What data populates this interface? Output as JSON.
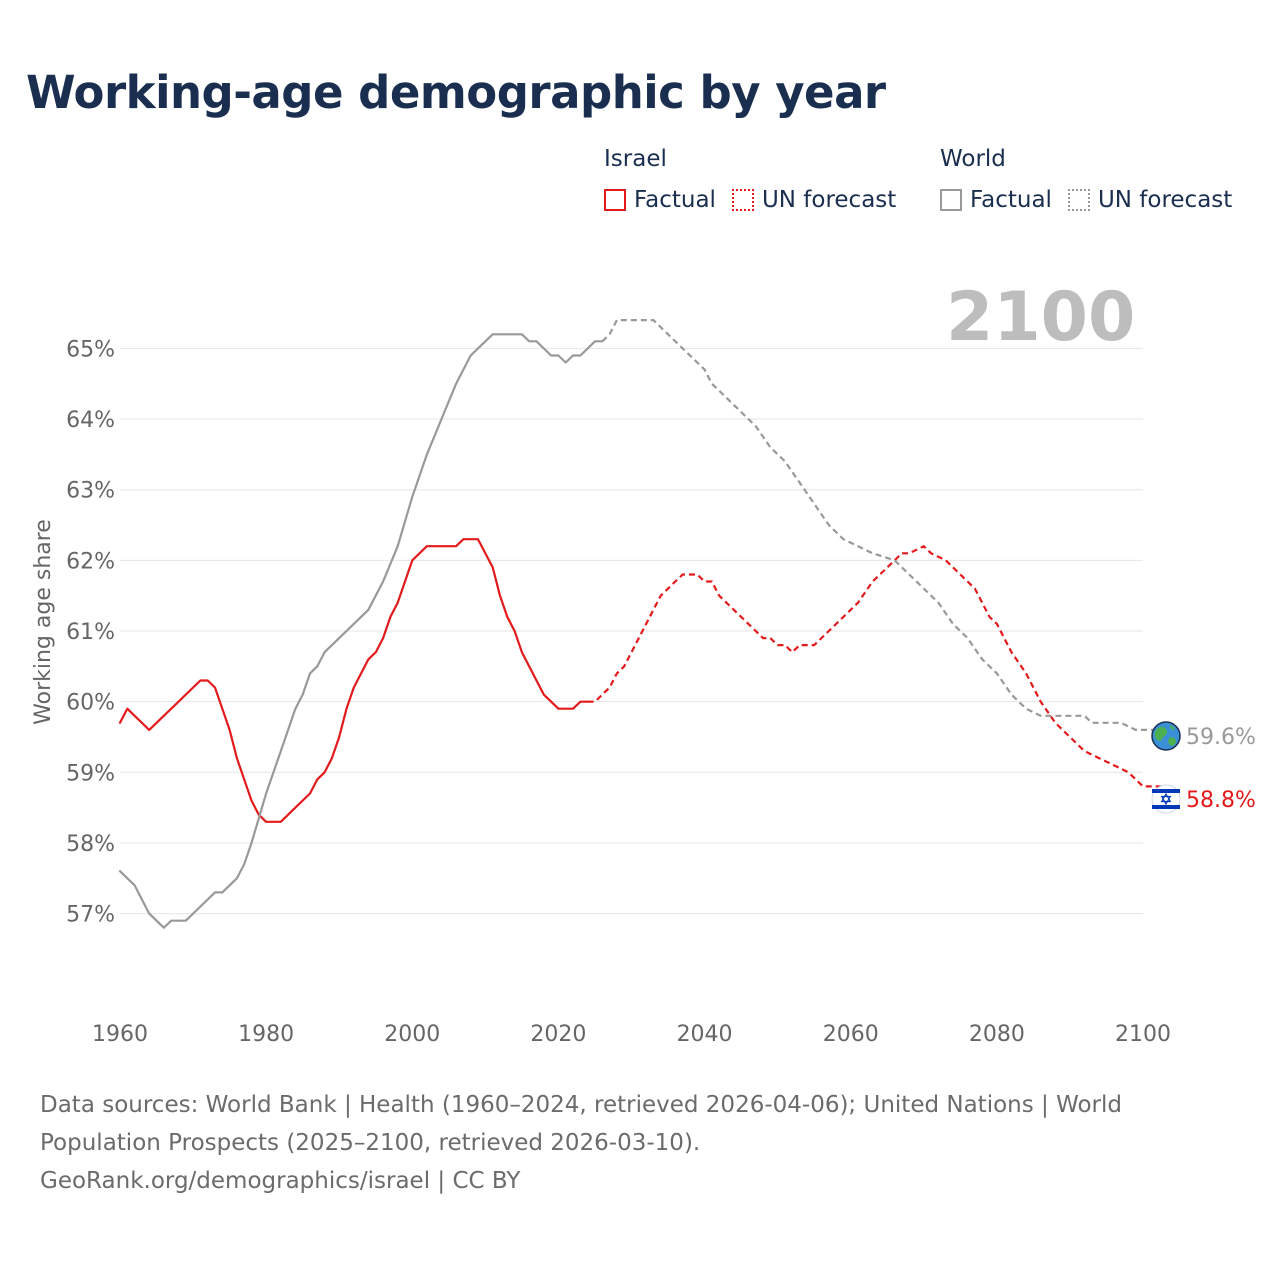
{
  "title": "Working-age demographic by year",
  "legend": {
    "groups": [
      {
        "name": "Israel",
        "color": "#e31a1c",
        "items": [
          "Factual",
          "UN forecast"
        ]
      },
      {
        "name": "World",
        "color": "#999999",
        "items": [
          "Factual",
          "UN forecast"
        ]
      }
    ]
  },
  "current_year": "2100",
  "end_labels": {
    "world": "59.6%",
    "israel": "58.8%"
  },
  "end_icons": {
    "world": "globe-icon",
    "israel": "israel-flag-icon"
  },
  "footer": {
    "line1": "Data sources: World Bank | Health (1960–2024, retrieved 2026-04-06); United Nations | World",
    "line2": "Population Prospects (2025–2100, retrieved 2026-03-10).",
    "line3": "GeoRank.org/demographics/israel | CC BY"
  },
  "chart_data": {
    "type": "line",
    "title": "Working-age demographic by year",
    "xlabel": "",
    "ylabel": "Working age share",
    "xlim": [
      1960,
      2100
    ],
    "ylim": [
      56.4,
      65.6
    ],
    "x_ticks": [
      1960,
      1980,
      2000,
      2020,
      2040,
      2060,
      2080,
      2100
    ],
    "y_ticks": [
      57,
      58,
      59,
      60,
      61,
      62,
      63,
      64,
      65
    ],
    "y_tick_labels": [
      "57%",
      "58%",
      "59%",
      "60%",
      "61%",
      "62%",
      "63%",
      "64%",
      "65%"
    ],
    "grid": true,
    "series": [
      {
        "name": "Israel",
        "segment": "Factual",
        "color": "#e31a1c",
        "dash": "solid",
        "points": [
          [
            1960,
            59.7
          ],
          [
            1961,
            59.9
          ],
          [
            1963,
            59.7
          ],
          [
            1964,
            59.6
          ],
          [
            1966,
            59.8
          ],
          [
            1968,
            60.0
          ],
          [
            1970,
            60.2
          ],
          [
            1971,
            60.3
          ],
          [
            1972,
            60.3
          ],
          [
            1973,
            60.2
          ],
          [
            1974,
            59.9
          ],
          [
            1975,
            59.6
          ],
          [
            1976,
            59.2
          ],
          [
            1978,
            58.6
          ],
          [
            1979,
            58.4
          ],
          [
            1980,
            58.3
          ],
          [
            1982,
            58.3
          ],
          [
            1984,
            58.5
          ],
          [
            1986,
            58.7
          ],
          [
            1987,
            58.9
          ],
          [
            1988,
            59.0
          ],
          [
            1989,
            59.2
          ],
          [
            1990,
            59.5
          ],
          [
            1991,
            59.9
          ],
          [
            1992,
            60.2
          ],
          [
            1994,
            60.6
          ],
          [
            1995,
            60.7
          ],
          [
            1996,
            60.9
          ],
          [
            1997,
            61.2
          ],
          [
            1998,
            61.4
          ],
          [
            1999,
            61.7
          ],
          [
            2000,
            62.0
          ],
          [
            2002,
            62.2
          ],
          [
            2006,
            62.2
          ],
          [
            2007,
            62.3
          ],
          [
            2009,
            62.3
          ],
          [
            2011,
            61.9
          ],
          [
            2012,
            61.5
          ],
          [
            2013,
            61.2
          ],
          [
            2014,
            61.0
          ],
          [
            2015,
            60.7
          ],
          [
            2017,
            60.3
          ],
          [
            2018,
            60.1
          ],
          [
            2020,
            59.9
          ],
          [
            2022,
            59.9
          ],
          [
            2023,
            60.0
          ],
          [
            2024,
            60.0
          ]
        ]
      },
      {
        "name": "Israel",
        "segment": "UN forecast",
        "color": "#e31a1c",
        "dash": "dashed",
        "points": [
          [
            2024,
            60.0
          ],
          [
            2025,
            60.0
          ],
          [
            2027,
            60.2
          ],
          [
            2028,
            60.4
          ],
          [
            2029,
            60.5
          ],
          [
            2031,
            60.9
          ],
          [
            2033,
            61.3
          ],
          [
            2034,
            61.5
          ],
          [
            2036,
            61.7
          ],
          [
            2037,
            61.8
          ],
          [
            2039,
            61.8
          ],
          [
            2040,
            61.7
          ],
          [
            2041,
            61.7
          ],
          [
            2042,
            61.5
          ],
          [
            2044,
            61.3
          ],
          [
            2046,
            61.1
          ],
          [
            2048,
            60.9
          ],
          [
            2049,
            60.9
          ],
          [
            2050,
            60.8
          ],
          [
            2051,
            60.8
          ],
          [
            2052,
            60.7
          ],
          [
            2053,
            60.8
          ],
          [
            2055,
            60.8
          ],
          [
            2057,
            61.0
          ],
          [
            2059,
            61.2
          ],
          [
            2061,
            61.4
          ],
          [
            2063,
            61.7
          ],
          [
            2065,
            61.9
          ],
          [
            2067,
            62.1
          ],
          [
            2068,
            62.1
          ],
          [
            2070,
            62.2
          ],
          [
            2071,
            62.1
          ],
          [
            2073,
            62.0
          ],
          [
            2075,
            61.8
          ],
          [
            2077,
            61.6
          ],
          [
            2079,
            61.2
          ],
          [
            2080,
            61.1
          ],
          [
            2082,
            60.7
          ],
          [
            2084,
            60.4
          ],
          [
            2086,
            60.0
          ],
          [
            2088,
            59.7
          ],
          [
            2090,
            59.5
          ],
          [
            2092,
            59.3
          ],
          [
            2094,
            59.2
          ],
          [
            2096,
            59.1
          ],
          [
            2098,
            59.0
          ],
          [
            2100,
            58.8
          ],
          [
            2103,
            58.8
          ]
        ]
      },
      {
        "name": "World",
        "segment": "Factual",
        "color": "#999999",
        "dash": "solid",
        "points": [
          [
            1960,
            57.6
          ],
          [
            1962,
            57.4
          ],
          [
            1964,
            57.0
          ],
          [
            1966,
            56.8
          ],
          [
            1967,
            56.9
          ],
          [
            1969,
            56.9
          ],
          [
            1971,
            57.1
          ],
          [
            1973,
            57.3
          ],
          [
            1974,
            57.3
          ],
          [
            1976,
            57.5
          ],
          [
            1977,
            57.7
          ],
          [
            1978,
            58.0
          ],
          [
            1980,
            58.7
          ],
          [
            1982,
            59.3
          ],
          [
            1984,
            59.9
          ],
          [
            1985,
            60.1
          ],
          [
            1986,
            60.4
          ],
          [
            1987,
            60.5
          ],
          [
            1988,
            60.7
          ],
          [
            1990,
            60.9
          ],
          [
            1992,
            61.1
          ],
          [
            1994,
            61.3
          ],
          [
            1996,
            61.7
          ],
          [
            1998,
            62.2
          ],
          [
            2000,
            62.9
          ],
          [
            2002,
            63.5
          ],
          [
            2004,
            64.0
          ],
          [
            2006,
            64.5
          ],
          [
            2008,
            64.9
          ],
          [
            2010,
            65.1
          ],
          [
            2011,
            65.2
          ],
          [
            2015,
            65.2
          ],
          [
            2016,
            65.1
          ],
          [
            2017,
            65.1
          ],
          [
            2019,
            64.9
          ],
          [
            2020,
            64.9
          ],
          [
            2021,
            64.8
          ],
          [
            2022,
            64.9
          ],
          [
            2023,
            64.9
          ],
          [
            2025,
            65.1
          ],
          [
            2026,
            65.1
          ]
        ]
      },
      {
        "name": "World",
        "segment": "UN forecast",
        "color": "#999999",
        "dash": "dashed",
        "points": [
          [
            2026,
            65.1
          ],
          [
            2027,
            65.2
          ],
          [
            2028,
            65.4
          ],
          [
            2033,
            65.4
          ],
          [
            2035,
            65.2
          ],
          [
            2036,
            65.1
          ],
          [
            2038,
            64.9
          ],
          [
            2040,
            64.7
          ],
          [
            2041,
            64.5
          ],
          [
            2043,
            64.3
          ],
          [
            2045,
            64.1
          ],
          [
            2047,
            63.9
          ],
          [
            2049,
            63.6
          ],
          [
            2051,
            63.4
          ],
          [
            2053,
            63.1
          ],
          [
            2055,
            62.8
          ],
          [
            2057,
            62.5
          ],
          [
            2059,
            62.3
          ],
          [
            2061,
            62.2
          ],
          [
            2063,
            62.1
          ],
          [
            2066,
            62.0
          ],
          [
            2068,
            61.8
          ],
          [
            2070,
            61.6
          ],
          [
            2072,
            61.4
          ],
          [
            2074,
            61.1
          ],
          [
            2076,
            60.9
          ],
          [
            2078,
            60.6
          ],
          [
            2080,
            60.4
          ],
          [
            2082,
            60.1
          ],
          [
            2084,
            59.9
          ],
          [
            2086,
            59.8
          ],
          [
            2092,
            59.8
          ],
          [
            2093,
            59.7
          ],
          [
            2097,
            59.7
          ],
          [
            2099,
            59.6
          ],
          [
            2103,
            59.6
          ]
        ]
      }
    ]
  }
}
